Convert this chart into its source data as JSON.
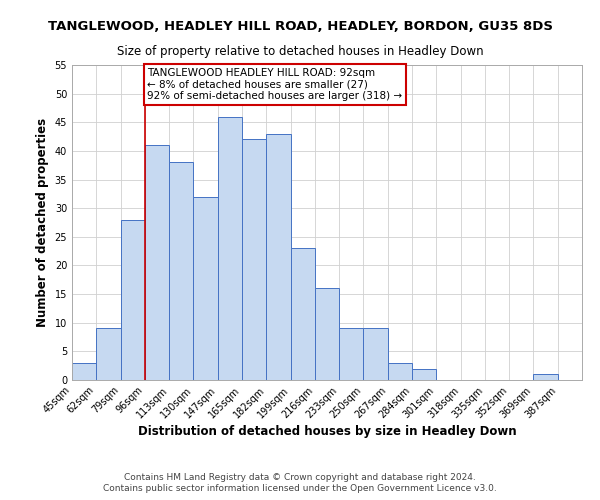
{
  "title": "TANGLEWOOD, HEADLEY HILL ROAD, HEADLEY, BORDON, GU35 8DS",
  "subtitle": "Size of property relative to detached houses in Headley Down",
  "xlabel": "Distribution of detached houses by size in Headley Down",
  "ylabel": "Number of detached properties",
  "bin_labels": [
    "45sqm",
    "62sqm",
    "79sqm",
    "96sqm",
    "113sqm",
    "130sqm",
    "147sqm",
    "165sqm",
    "182sqm",
    "199sqm",
    "216sqm",
    "233sqm",
    "250sqm",
    "267sqm",
    "284sqm",
    "301sqm",
    "318sqm",
    "335sqm",
    "352sqm",
    "369sqm",
    "387sqm"
  ],
  "bar_heights": [
    3,
    9,
    28,
    41,
    38,
    32,
    46,
    42,
    43,
    23,
    16,
    9,
    9,
    3,
    2,
    0,
    0,
    0,
    0,
    1,
    0
  ],
  "bar_color": "#c6d9f1",
  "bar_edge_color": "#4472c4",
  "ylim": [
    0,
    55
  ],
  "yticks": [
    0,
    5,
    10,
    15,
    20,
    25,
    30,
    35,
    40,
    45,
    50,
    55
  ],
  "property_line_x": 3,
  "property_line_label": "TANGLEWOOD HEADLEY HILL ROAD: 92sqm",
  "annotation_line1": "← 8% of detached houses are smaller (27)",
  "annotation_line2": "92% of semi-detached houses are larger (318) →",
  "legend_box_color": "#ffffff",
  "legend_box_edge": "#cc0000",
  "vline_color": "#cc0000",
  "footer1": "Contains HM Land Registry data © Crown copyright and database right 2024.",
  "footer2": "Contains public sector information licensed under the Open Government Licence v3.0.",
  "bg_color": "#ffffff",
  "grid_color": "#d0d0d0",
  "title_fontsize": 9.5,
  "subtitle_fontsize": 8.5,
  "axis_label_fontsize": 8.5,
  "tick_fontsize": 7,
  "annotation_fontsize": 7.5,
  "footer_fontsize": 6.5
}
